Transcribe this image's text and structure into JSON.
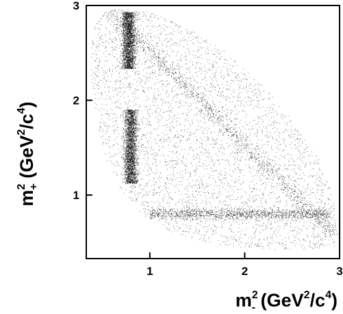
{
  "chart_data": {
    "type": "scatter",
    "title": "",
    "xlabel": {
      "base": "m",
      "exp": "2",
      "sub": "-",
      "paren_open": " (GeV",
      "unit_exp": "2",
      "unit_mid": "/c",
      "unit_exp2": "4",
      "paren_close": ")"
    },
    "ylabel": {
      "base": "m",
      "exp": "2",
      "sub": "+",
      "paren_open": " (GeV",
      "unit_exp": "2",
      "unit_mid": "/c",
      "unit_exp2": "4",
      "paren_close": ")"
    },
    "xlim": [
      0.33,
      3.0
    ],
    "ylim": [
      0.33,
      3.0
    ],
    "x_ticks": [
      {
        "value": 1,
        "label": "1"
      },
      {
        "value": 2,
        "label": "2"
      },
      {
        "value": 3,
        "label": "3"
      }
    ],
    "y_ticks": [
      {
        "value": 1,
        "label": "1"
      },
      {
        "value": 2,
        "label": "2"
      },
      {
        "value": 3,
        "label": "3"
      }
    ],
    "kinematic_boundary": [
      [
        0.66,
        2.97
      ],
      [
        0.9,
        2.95
      ],
      [
        1.15,
        2.88
      ],
      [
        1.45,
        2.74
      ],
      [
        1.8,
        2.51
      ],
      [
        2.15,
        2.2
      ],
      [
        2.5,
        1.8
      ],
      [
        2.78,
        1.38
      ],
      [
        2.93,
        1.0
      ],
      [
        2.98,
        0.6
      ],
      [
        2.95,
        0.46
      ],
      [
        2.75,
        0.42
      ],
      [
        2.4,
        0.42
      ],
      [
        2.0,
        0.44
      ],
      [
        1.6,
        0.5
      ],
      [
        1.2,
        0.62
      ],
      [
        0.95,
        0.77
      ],
      [
        0.72,
        1.02
      ],
      [
        0.55,
        1.35
      ],
      [
        0.44,
        1.78
      ],
      [
        0.39,
        2.2
      ],
      [
        0.38,
        2.55
      ],
      [
        0.42,
        2.78
      ],
      [
        0.52,
        2.92
      ],
      [
        0.66,
        2.97
      ]
    ],
    "resonance_bands": [
      {
        "orientation": "vertical",
        "at": 0.8,
        "from": 1.12,
        "to": 1.9,
        "intensity": 0.95,
        "width": 0.07
      },
      {
        "orientation": "vertical",
        "at": 0.78,
        "from": 2.33,
        "to": 2.93,
        "intensity": 0.85,
        "width": 0.07
      },
      {
        "orientation": "horizontal",
        "at": 0.8,
        "from": 1.0,
        "to": 2.9,
        "intensity": 0.5,
        "width": 0.06
      },
      {
        "orientation": "diagonal",
        "sum": 3.53,
        "from": 0.55,
        "to": 2.95,
        "intensity": 0.45,
        "width": 0.08
      }
    ],
    "grid": false,
    "legend": "none",
    "marker_color": "#000000"
  }
}
